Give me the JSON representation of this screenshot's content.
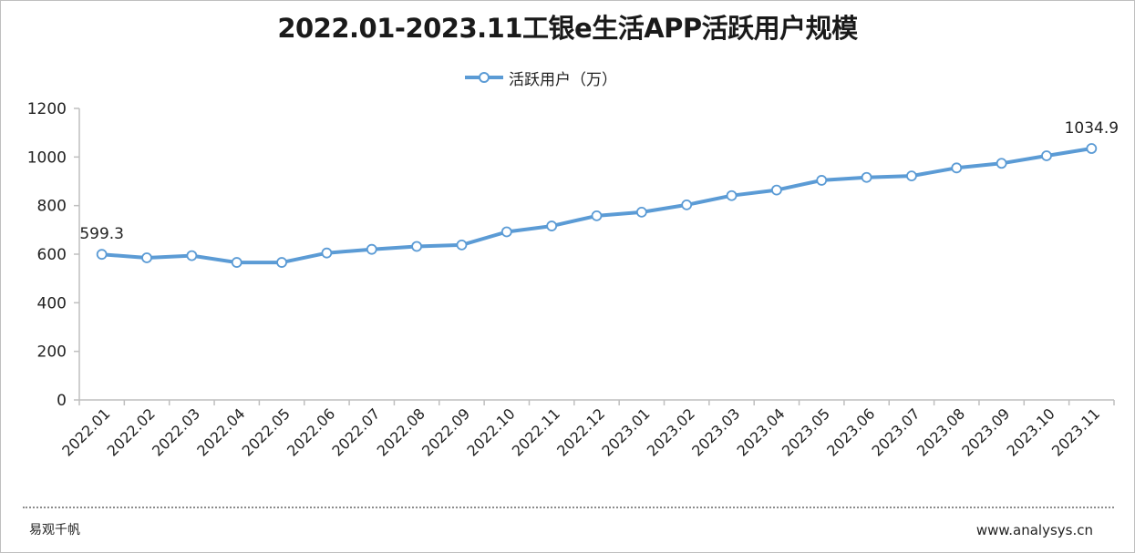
{
  "chart_data": {
    "type": "line",
    "title": "2022.01-2023.11工银e生活APP活跃用户规模",
    "categories": [
      "2022.01",
      "2022.02",
      "2022.03",
      "2022.04",
      "2022.05",
      "2022.06",
      "2022.07",
      "2022.08",
      "2022.09",
      "2022.10",
      "2022.11",
      "2022.12",
      "2023.01",
      "2023.02",
      "2023.03",
      "2023.04",
      "2023.05",
      "2023.06",
      "2023.07",
      "2023.08",
      "2023.09",
      "2023.10",
      "2023.11"
    ],
    "series": [
      {
        "name": "活跃用户（万）",
        "color": "#5b9bd5",
        "values": [
          599.3,
          585,
          594,
          566,
          566,
          605,
          620,
          632,
          638,
          692,
          716,
          758,
          773,
          803,
          841,
          864,
          904,
          916,
          922,
          955,
          974,
          1005,
          1034.9
        ]
      }
    ],
    "data_labels": [
      {
        "index": 0,
        "text": "599.3"
      },
      {
        "index": 22,
        "text": "1034.9"
      }
    ],
    "ylim": [
      0,
      1200
    ],
    "yticks": [
      "0",
      "200",
      "400",
      "600",
      "800",
      "1000",
      "1200"
    ],
    "grid": false,
    "legend_position": "top-center"
  },
  "footer": {
    "source": "易观千帆",
    "website": "www.analysys.cn"
  }
}
